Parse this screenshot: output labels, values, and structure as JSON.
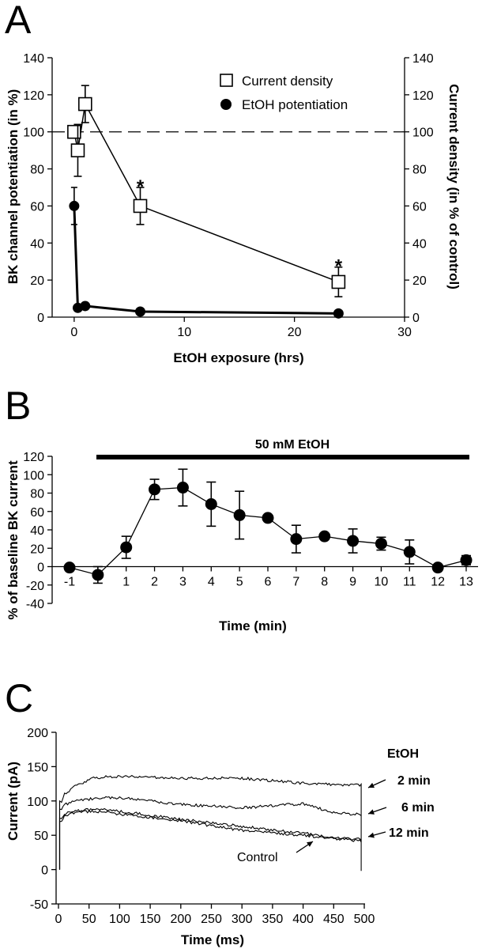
{
  "panels": {
    "a": {
      "letter": "A"
    },
    "b": {
      "letter": "B"
    },
    "c": {
      "letter": "C"
    }
  },
  "chart_data": [
    {
      "panel": "A",
      "type": "scatter",
      "xlabel": "EtOH exposure (hrs)",
      "ylabel": "BK  channel potentiation (in %)",
      "ylabel_right": "Current density (in % of control)",
      "xlim": [
        -2,
        30
      ],
      "ylim": [
        0,
        140
      ],
      "ylim_right": [
        0,
        140
      ],
      "xticks": [
        0,
        10,
        20,
        30
      ],
      "yticks": [
        0,
        20,
        40,
        60,
        80,
        100,
        120,
        140
      ],
      "reference_line": {
        "y": 100,
        "style": "dashed"
      },
      "legend_position": "top-right",
      "series": [
        {
          "name": "Current density",
          "marker": "open-square",
          "x": [
            0,
            0.33,
            1,
            6,
            24
          ],
          "y": [
            100,
            90,
            115,
            60,
            19
          ],
          "err": [
            0,
            14,
            10,
            10,
            8
          ]
        },
        {
          "name": "EtOH potentiation",
          "marker": "filled-circle",
          "x": [
            0,
            0.33,
            1,
            6,
            24
          ],
          "y": [
            60,
            5,
            6,
            3,
            2
          ],
          "err": [
            10,
            0,
            0,
            0,
            0
          ]
        }
      ],
      "annotations": [
        {
          "text": "*",
          "x": 6,
          "y": 73
        },
        {
          "text": "*",
          "x": 24,
          "y": 30
        }
      ]
    },
    {
      "panel": "B",
      "type": "line",
      "xlabel": "Time (min)",
      "ylabel": "% of baseline BK current",
      "xlim": [
        -1.4,
        13.4
      ],
      "ylim": [
        -40,
        120
      ],
      "xticks": [
        -1,
        1,
        2,
        3,
        4,
        5,
        6,
        7,
        8,
        9,
        10,
        11,
        12,
        13
      ],
      "yticks": [
        -40,
        -20,
        0,
        20,
        40,
        60,
        80,
        100,
        120
      ],
      "bar_label": "50 mM EtOH",
      "bar_range": [
        0.2,
        13.2
      ],
      "series": [
        {
          "marker": "filled-circle",
          "x": [
            -1,
            0,
            1,
            2,
            3,
            4,
            5,
            6,
            7,
            8,
            9,
            10,
            11,
            12,
            13
          ],
          "y": [
            -1,
            -9,
            21,
            84,
            86,
            68,
            56,
            53,
            30,
            33,
            28,
            25,
            16,
            -1,
            7
          ],
          "err": [
            0,
            9,
            12,
            11,
            20,
            24,
            26,
            0,
            15,
            0,
            13,
            7,
            13,
            0,
            5
          ]
        }
      ]
    },
    {
      "panel": "C",
      "type": "line",
      "xlabel": "Time (ms)",
      "ylabel": "Current (pA)",
      "xlim": [
        0,
        500
      ],
      "ylim": [
        -50,
        200
      ],
      "xticks": [
        0,
        50,
        100,
        150,
        200,
        250,
        300,
        350,
        400,
        450,
        500
      ],
      "yticks": [
        -50,
        0,
        50,
        100,
        150,
        200
      ],
      "legend_title": "EtOH",
      "series": [
        {
          "name": "2 min",
          "x": [
            5,
            10,
            30,
            60,
            100,
            200,
            300,
            400,
            450,
            495
          ],
          "y": [
            100,
            110,
            123,
            134,
            136,
            133,
            133,
            126,
            124,
            123
          ]
        },
        {
          "name": "6 min",
          "x": [
            5,
            10,
            30,
            60,
            100,
            200,
            300,
            400,
            450,
            495
          ],
          "y": [
            88,
            95,
            100,
            104,
            105,
            95,
            90,
            96,
            83,
            80
          ]
        },
        {
          "name": "12 min",
          "x": [
            5,
            10,
            30,
            60,
            100,
            200,
            300,
            400,
            450,
            495
          ],
          "y": [
            75,
            82,
            86,
            88,
            85,
            73,
            63,
            53,
            47,
            44
          ]
        },
        {
          "name": "Control",
          "x": [
            5,
            10,
            30,
            60,
            100,
            200,
            300,
            400,
            450,
            495
          ],
          "y": [
            70,
            78,
            84,
            85,
            81,
            71,
            57,
            50,
            45,
            42
          ]
        }
      ],
      "annotations": [
        {
          "text": "2 min",
          "target": "2 min"
        },
        {
          "text": "6 min",
          "target": "6 min"
        },
        {
          "text": "12 min",
          "target": "12 min"
        },
        {
          "text": "Control",
          "target": "Control"
        }
      ]
    }
  ]
}
